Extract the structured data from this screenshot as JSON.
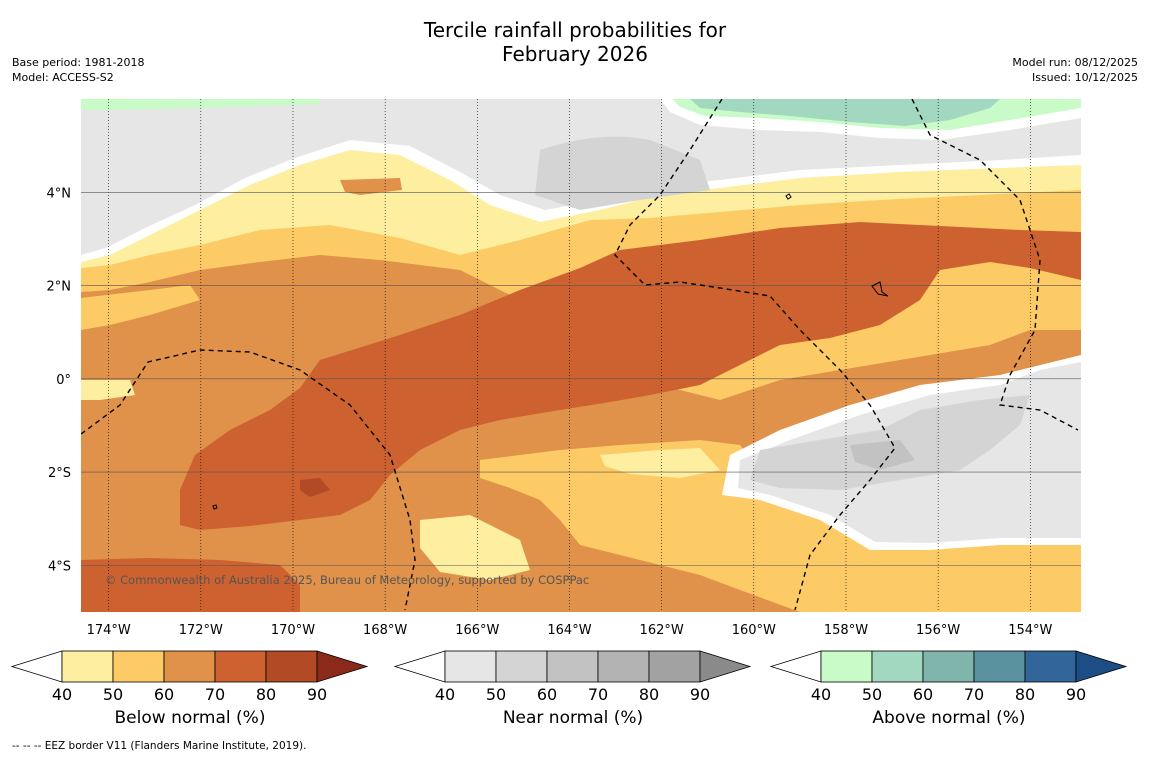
{
  "title_line1": "Tercile rainfall probabilities for",
  "title_line2": "February 2026",
  "base_period": "Base period: 1981-2018",
  "model": "Model: ACCESS-S2",
  "model_run": "Model run: 08/12/2025",
  "issued": "Issued: 10/12/2025",
  "copyright": "© Commonwealth of Australia 2025, Bureau of Meteorology, supported by COSPPac",
  "footer": "--  --  -- EEZ border V11 (Flanders Marine Institute, 2019).",
  "longitude_labels": [
    "174°W",
    "172°W",
    "170°W",
    "168°W",
    "166°W",
    "164°W",
    "162°W",
    "160°W",
    "158°W",
    "156°W",
    "154°W"
  ],
  "longitude_values": [
    -174,
    -172,
    -170,
    -168,
    -166,
    -164,
    -162,
    -160,
    -158,
    -156,
    -154
  ],
  "latitude_labels": [
    "4°N",
    "2°N",
    "0°",
    "2°S",
    "4°S"
  ],
  "latitude_values": [
    4,
    2,
    0,
    -2,
    -4
  ],
  "map_extent": {
    "lon": [
      -174.6,
      -152.9
    ],
    "lat": [
      -5.0,
      6.0
    ]
  },
  "colorbars": [
    {
      "label": "Below normal (%)",
      "ticks": [
        "40",
        "50",
        "60",
        "70",
        "80",
        "90"
      ],
      "colors": [
        "#ffffff",
        "#fdeea0",
        "#fdcb65",
        "#e0914a",
        "#cd6130",
        "#b24a25",
        "#8b2a1a"
      ]
    },
    {
      "label": "Near normal (%)",
      "ticks": [
        "40",
        "50",
        "60",
        "70",
        "80",
        "90"
      ],
      "colors": [
        "#ffffff",
        "#e6e6e6",
        "#d4d4d4",
        "#c2c2c2",
        "#b3b3b3",
        "#a2a2a2",
        "#8a8a8a"
      ]
    },
    {
      "label": "Above normal (%)",
      "ticks": [
        "40",
        "50",
        "60",
        "70",
        "80",
        "90"
      ],
      "colors": [
        "#ffffff",
        "#c8fbc8",
        "#a2d8bf",
        "#80b5ac",
        "#5a929f",
        "#32659a",
        "#1c4d85"
      ]
    }
  ]
}
